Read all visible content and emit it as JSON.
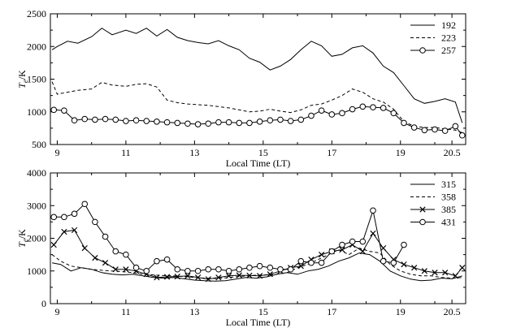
{
  "chart_data": [
    {
      "type": "line",
      "title": "",
      "xlabel": "Local Time (LT)",
      "ylabel": "T",
      "ylabel_sub": "e",
      "ylabel_unit": "/K",
      "xlim": [
        8.8,
        20.9
      ],
      "ylim": [
        500,
        2500
      ],
      "xticks": [
        9,
        11,
        13,
        15,
        17,
        19,
        20.5
      ],
      "xtick_labels": [
        "9",
        "11",
        "13",
        "15",
        "17",
        "19",
        "20.5"
      ],
      "yticks": [
        500,
        1000,
        1500,
        2000,
        2500
      ],
      "ytick_labels": [
        "500",
        "1000",
        "1500",
        "2000",
        "2500"
      ],
      "legend_position": "top-right",
      "series": [
        {
          "name": "192",
          "style": "solid",
          "marker": "none",
          "x": [
            8.85,
            9.0,
            9.3,
            9.6,
            10.0,
            10.3,
            10.6,
            11.0,
            11.3,
            11.6,
            11.9,
            12.2,
            12.5,
            12.8,
            13.1,
            13.4,
            13.7,
            14.0,
            14.3,
            14.6,
            14.9,
            15.2,
            15.5,
            15.8,
            16.1,
            16.4,
            16.7,
            17.0,
            17.3,
            17.6,
            17.9,
            18.2,
            18.5,
            18.8,
            19.1,
            19.4,
            19.7,
            20.0,
            20.3,
            20.6,
            20.8
          ],
          "y": [
            1950,
            2000,
            2080,
            2050,
            2150,
            2280,
            2180,
            2250,
            2200,
            2280,
            2160,
            2260,
            2140,
            2090,
            2060,
            2040,
            2090,
            2010,
            1950,
            1820,
            1760,
            1640,
            1700,
            1800,
            1950,
            2080,
            2010,
            1850,
            1880,
            1980,
            2010,
            1900,
            1700,
            1600,
            1400,
            1200,
            1130,
            1160,
            1200,
            1150,
            830
          ]
        },
        {
          "name": "223",
          "style": "dashed",
          "marker": "none",
          "x": [
            8.85,
            9.0,
            9.3,
            9.6,
            10.0,
            10.3,
            10.6,
            11.0,
            11.3,
            11.6,
            11.9,
            12.2,
            12.5,
            12.8,
            13.1,
            13.4,
            13.7,
            14.0,
            14.3,
            14.6,
            14.9,
            15.2,
            15.5,
            15.8,
            16.1,
            16.4,
            16.7,
            17.0,
            17.3,
            17.6,
            17.9,
            18.2,
            18.5,
            18.8,
            19.1,
            19.4,
            19.7,
            20.0,
            20.3,
            20.6,
            20.8
          ],
          "y": [
            1460,
            1270,
            1300,
            1330,
            1350,
            1450,
            1410,
            1390,
            1420,
            1430,
            1380,
            1180,
            1140,
            1120,
            1110,
            1100,
            1080,
            1060,
            1030,
            1000,
            1010,
            1040,
            1010,
            990,
            1030,
            1100,
            1120,
            1180,
            1250,
            1350,
            1300,
            1200,
            1150,
            1040,
            850,
            780,
            760,
            760,
            740,
            720,
            680
          ]
        },
        {
          "name": "257",
          "style": "solid",
          "marker": "circle",
          "x": [
            8.9,
            9.2,
            9.5,
            9.8,
            10.1,
            10.4,
            10.7,
            11.0,
            11.3,
            11.6,
            11.9,
            12.2,
            12.5,
            12.8,
            13.1,
            13.4,
            13.7,
            14.0,
            14.3,
            14.6,
            14.9,
            15.2,
            15.5,
            15.8,
            16.1,
            16.4,
            16.7,
            17.0,
            17.3,
            17.6,
            17.9,
            18.2,
            18.5,
            18.8,
            19.1,
            19.4,
            19.7,
            20.0,
            20.3,
            20.6,
            20.8
          ],
          "y": [
            1030,
            1020,
            870,
            890,
            880,
            890,
            880,
            860,
            870,
            860,
            850,
            840,
            830,
            820,
            810,
            820,
            840,
            840,
            830,
            830,
            850,
            870,
            880,
            860,
            880,
            940,
            1020,
            960,
            980,
            1040,
            1080,
            1070,
            1060,
            980,
            830,
            760,
            720,
            730,
            710,
            780,
            640
          ]
        }
      ]
    },
    {
      "type": "line",
      "title": "",
      "xlabel": "Local Time (LT)",
      "ylabel": "T",
      "ylabel_sub": "e",
      "ylabel_unit": "/K",
      "xlim": [
        8.8,
        20.9
      ],
      "ylim": [
        0,
        4000
      ],
      "xticks": [
        9,
        11,
        13,
        15,
        17,
        19,
        20.5
      ],
      "xtick_labels": [
        "9",
        "11",
        "13",
        "15",
        "17",
        "19",
        "20.5"
      ],
      "yticks": [
        0,
        1000,
        2000,
        3000,
        4000
      ],
      "ytick_labels": [
        "0",
        "1000",
        "2000",
        "3000",
        "4000"
      ],
      "legend_position": "top-right",
      "series": [
        {
          "name": "315",
          "style": "solid",
          "marker": "none",
          "x": [
            8.85,
            9.1,
            9.4,
            9.7,
            10.0,
            10.3,
            10.6,
            10.9,
            11.2,
            11.5,
            11.8,
            12.1,
            12.4,
            12.7,
            13.0,
            13.3,
            13.6,
            13.9,
            14.2,
            14.5,
            14.8,
            15.1,
            15.4,
            15.7,
            16.0,
            16.3,
            16.6,
            16.9,
            17.2,
            17.5,
            17.8,
            18.1,
            18.4,
            18.7,
            19.0,
            19.3,
            19.6,
            19.9,
            20.2,
            20.5,
            20.8
          ],
          "y": [
            1250,
            1200,
            1000,
            1100,
            1050,
            950,
            900,
            880,
            900,
            850,
            800,
            780,
            800,
            760,
            720,
            700,
            690,
            700,
            750,
            800,
            780,
            820,
            900,
            950,
            900,
            1000,
            1050,
            1150,
            1300,
            1400,
            1550,
            1500,
            1300,
            1000,
            850,
            750,
            700,
            720,
            780,
            760,
            850
          ]
        },
        {
          "name": "358",
          "style": "dashed",
          "marker": "none",
          "x": [
            8.85,
            9.1,
            9.4,
            9.7,
            10.0,
            10.3,
            10.6,
            10.9,
            11.2,
            11.5,
            11.8,
            12.1,
            12.4,
            12.7,
            13.0,
            13.3,
            13.6,
            13.9,
            14.2,
            14.5,
            14.8,
            15.1,
            15.4,
            15.7,
            16.0,
            16.3,
            16.6,
            16.9,
            17.2,
            17.5,
            17.8,
            18.1,
            18.4,
            18.7,
            19.0,
            19.3,
            19.6,
            19.9,
            20.2,
            20.5,
            20.8
          ],
          "y": [
            1500,
            1300,
            1150,
            1100,
            1050,
            1020,
            1000,
            980,
            950,
            900,
            880,
            860,
            850,
            830,
            800,
            780,
            770,
            790,
            820,
            850,
            870,
            880,
            900,
            950,
            1100,
            1200,
            1350,
            1500,
            1650,
            1500,
            1700,
            1600,
            1550,
            1200,
            1000,
            900,
            850,
            850,
            800,
            780,
            800
          ]
        },
        {
          "name": "385",
          "style": "solid",
          "marker": "cross",
          "x": [
            8.9,
            9.2,
            9.5,
            9.8,
            10.1,
            10.4,
            10.7,
            11.0,
            11.3,
            11.6,
            11.9,
            12.2,
            12.5,
            12.8,
            13.1,
            13.4,
            13.7,
            14.0,
            14.3,
            14.6,
            14.9,
            15.2,
            15.5,
            15.8,
            16.1,
            16.4,
            16.7,
            17.0,
            17.3,
            17.6,
            17.9,
            18.2,
            18.5,
            18.8,
            19.1,
            19.4,
            19.7,
            20.0,
            20.3,
            20.6,
            20.8
          ],
          "y": [
            1800,
            2200,
            2250,
            1700,
            1400,
            1250,
            1050,
            1050,
            1000,
            900,
            800,
            820,
            830,
            850,
            800,
            750,
            800,
            850,
            870,
            860,
            850,
            900,
            1000,
            1100,
            1150,
            1350,
            1500,
            1600,
            1650,
            1800,
            1600,
            2150,
            1700,
            1350,
            1200,
            1100,
            1000,
            950,
            950,
            850,
            1100
          ]
        },
        {
          "name": "431",
          "style": "solid",
          "marker": "circle",
          "x": [
            8.9,
            9.2,
            9.5,
            9.8,
            10.1,
            10.4,
            10.7,
            11.0,
            11.3,
            11.6,
            11.9,
            12.2,
            12.5,
            12.8,
            13.1,
            13.4,
            13.7,
            14.0,
            14.3,
            14.6,
            14.9,
            15.2,
            15.5,
            15.8,
            16.1,
            16.4,
            16.7,
            17.0,
            17.3,
            17.6,
            17.9,
            18.2,
            18.5,
            18.8,
            19.1
          ],
          "y": [
            2650,
            2650,
            2750,
            3050,
            2500,
            2050,
            1600,
            1500,
            1100,
            1000,
            1300,
            1350,
            1050,
            1000,
            1000,
            1050,
            1050,
            1000,
            1050,
            1100,
            1150,
            1100,
            1050,
            1050,
            1300,
            1250,
            1250,
            1600,
            1800,
            1900,
            1900,
            2850,
            1300,
            1250,
            1800
          ]
        }
      ]
    }
  ]
}
